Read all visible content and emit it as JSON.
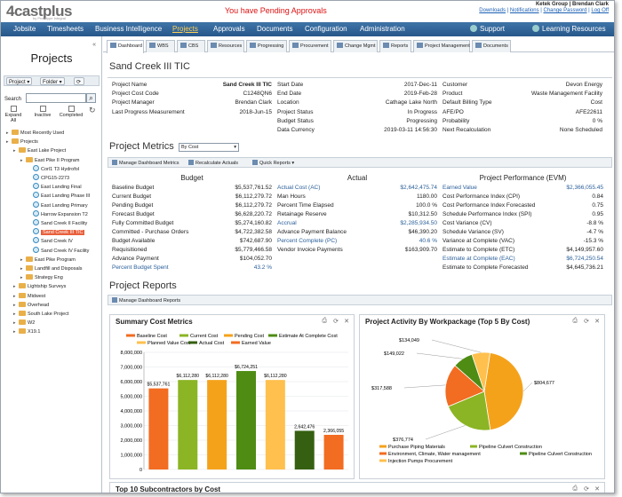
{
  "header": {
    "logo_text": "4castplus",
    "logo_sub": "by Prototype Integral",
    "pending": "You have Pending Approvals",
    "user": "Ketek Group | Brendan Clark",
    "links": [
      "Downloads",
      "Notifications",
      "Change Password",
      "Log Off"
    ]
  },
  "nav": {
    "items": [
      "Jobsite",
      "Timesheets",
      "Business Intelligence",
      "Projects",
      "Approvals",
      "Documents",
      "Configuration",
      "Administration"
    ],
    "support": "Support",
    "learning": "Learning Resources"
  },
  "sidebar": {
    "collapse": "«",
    "title": "Projects",
    "project_btn": "Project ▾",
    "folder_btn": "Folder ▾",
    "search_label": "Search",
    "filters": [
      "Expand All",
      "Inactive",
      "Completed"
    ],
    "tree": [
      {
        "label": "Most Recently Used",
        "level": 0,
        "type": "folder"
      },
      {
        "label": "Projects",
        "level": 0,
        "type": "folder"
      },
      {
        "label": "East Lake Project",
        "level": 1,
        "type": "folder"
      },
      {
        "label": "East Pike II Program",
        "level": 2,
        "type": "folder"
      },
      {
        "label": "Corl1 T3 Hydrofol",
        "level": 3,
        "type": "item"
      },
      {
        "label": "CPG15-2273",
        "level": 3,
        "type": "item"
      },
      {
        "label": "East Landing Final",
        "level": 3,
        "type": "item"
      },
      {
        "label": "East Landing Phase III",
        "level": 3,
        "type": "item"
      },
      {
        "label": "East Landing Primary",
        "level": 3,
        "type": "item"
      },
      {
        "label": "Harrow Expansion T2",
        "level": 3,
        "type": "item"
      },
      {
        "label": "Sand Creek II Facility",
        "level": 3,
        "type": "item"
      },
      {
        "label": "Sand Creek III TIC",
        "level": 3,
        "type": "item",
        "selected": true
      },
      {
        "label": "Sand Creek IV",
        "level": 3,
        "type": "item"
      },
      {
        "label": "Sand Creek IV Facility",
        "level": 3,
        "type": "item"
      },
      {
        "label": "East Pike Program",
        "level": 2,
        "type": "folder"
      },
      {
        "label": "Landfill and Disposals",
        "level": 2,
        "type": "folder"
      },
      {
        "label": "Strategy Eng",
        "level": 2,
        "type": "folder"
      },
      {
        "label": "Lightship Surveys",
        "level": 1,
        "type": "folder"
      },
      {
        "label": "Midwest",
        "level": 1,
        "type": "folder"
      },
      {
        "label": "Overhead",
        "level": 1,
        "type": "folder"
      },
      {
        "label": "South Lake Project",
        "level": 1,
        "type": "folder"
      },
      {
        "label": "W2",
        "level": 1,
        "type": "folder"
      },
      {
        "label": "X19.1",
        "level": 1,
        "type": "folder"
      }
    ]
  },
  "tabs": [
    "Dashboard",
    "WBS",
    "CBS",
    "Resources",
    "Progressing",
    "Procurement",
    "Change Mgmt",
    "Reports",
    "Project Management",
    "Documents"
  ],
  "project": {
    "title": "Sand Creek III TIC",
    "col1": [
      {
        "k": "Project Name",
        "v": "Sand Creek III TIC",
        "bold": true
      },
      {
        "k": "Project Cost Code",
        "v": "C1248QN6"
      },
      {
        "k": "Project Manager",
        "v": "Brendan Clark"
      },
      {
        "k": "Last Progress Measurement",
        "v": "2018-Jun-15"
      }
    ],
    "col2": [
      {
        "k": "Start Date",
        "v": "2017-Dec-11"
      },
      {
        "k": "End Date",
        "v": "2019-Feb-28"
      },
      {
        "k": "Location",
        "v": "Cathage Lake North"
      },
      {
        "k": "Project Status",
        "v": "In Progress"
      },
      {
        "k": "Budget Status",
        "v": "Progressing"
      },
      {
        "k": "Data Currency",
        "v": "2019-03-11 14:56:30"
      }
    ],
    "col3": [
      {
        "k": "Customer",
        "v": "Devon Energy"
      },
      {
        "k": "Product",
        "v": "Waste Management Facility"
      },
      {
        "k": "Default Billing Type",
        "v": "Cost"
      },
      {
        "k": "AFE/PO",
        "v": "AFE22611"
      },
      {
        "k": "Probability",
        "v": "0 %"
      },
      {
        "k": "Next Recalculation",
        "v": "None Scheduled"
      }
    ]
  },
  "metrics": {
    "title": "Project Metrics",
    "select": "By Cost",
    "toolbar": [
      "Manage Dashboard Metrics",
      "Recalculate Actuals",
      "Quick Reports ▾"
    ],
    "budget_header": "Budget",
    "actual_header": "Actual",
    "evm_header": "Project Performance (EVM)",
    "budget": [
      {
        "k": "Baseline Budget",
        "v": "$5,537,761.52"
      },
      {
        "k": "Current Budget",
        "v": "$6,112,279.72"
      },
      {
        "k": "Pending Budget",
        "v": "$6,112,279.72"
      },
      {
        "k": "Forecast Budget",
        "v": "$6,628,220.72"
      },
      {
        "k": "Fully Committed Budget",
        "v": "$5,274,160.82"
      },
      {
        "k": "Committed - Purchase Orders",
        "v": "$4,722,382.58"
      },
      {
        "k": "Budget Available",
        "v": "$742,687.90"
      },
      {
        "k": "Requisitioned",
        "v": "$5,779,466.58"
      },
      {
        "k": "Advance Payment",
        "v": "$104,052.70"
      },
      {
        "k": "Percent Budget Spent",
        "v": "43.2 %",
        "blue": true
      }
    ],
    "actual": [
      {
        "k": "Actual Cost (AC)",
        "v": "$2,642,475.74",
        "blue": true
      },
      {
        "k": "Man Hours",
        "v": "1180.00"
      },
      {
        "k": "Percent Time Elapsed",
        "v": "100.0 %"
      },
      {
        "k": "Retainage Reserve",
        "v": "$10,312.50"
      },
      {
        "k": "Accrual",
        "v": "$2,285,934.50",
        "blue": true
      },
      {
        "k": "Advance Payment Balance",
        "v": "$46,390.20"
      },
      {
        "k": "Percent Complete (PC)",
        "v": "40.6 %",
        "blue": true
      },
      {
        "k": "Vendor Invoice Payments",
        "v": "$163,909.70"
      }
    ],
    "evm": [
      {
        "k": "Earned Value",
        "v": "$2,366,055.45",
        "blue": true
      },
      {
        "k": "Cost Performance Index (CPI)",
        "v": "0.84"
      },
      {
        "k": "Cost Performance Index Forecasted",
        "v": "0.75"
      },
      {
        "k": "Schedule Performance Index (SPI)",
        "v": "0.95"
      },
      {
        "k": "Cost Variance (CV)",
        "v": "-8.8 %"
      },
      {
        "k": "Schedule Variance (SV)",
        "v": "-4.7 %"
      },
      {
        "k": "Variance at Complete (VAC)",
        "v": "-15.3 %"
      },
      {
        "k": "Estimate to Complete (ETC)",
        "v": "$4,149,957.60"
      },
      {
        "k": "Estimate at Complete (EAC)",
        "v": "$6,724,250.54",
        "blue": true
      },
      {
        "k": "Estimate to Complete Forecasted",
        "v": "$4,645,736.21"
      }
    ]
  },
  "reports": {
    "title": "Project Reports",
    "toolbar": [
      "Manage Dashboard Reports"
    ],
    "bottom_panel_title": "Top 10 Subcontractors by Cost"
  },
  "chart_data": [
    {
      "type": "bar",
      "title": "Summary Cost Metrics",
      "categories": [
        "Baseline Cost",
        "Current Cost",
        "Pending Cost",
        "Estimate At Complete Cost",
        "Planned Value Cost",
        "Actual Cost",
        "Earned Value"
      ],
      "values": [
        5537761,
        6112280,
        6112280,
        6724251,
        6112280,
        2642476,
        2366055
      ],
      "value_labels": [
        "$5,537,761",
        "$6,112,280",
        "$6,112,280",
        "$6,724,251",
        "$6,112,280",
        "2,642,476",
        "2,366,055"
      ],
      "colors": [
        "#f26c21",
        "#8bb524",
        "#f5a21b",
        "#4e8c13",
        "#ffc04d",
        "#356011",
        "#f26c21"
      ],
      "ylim": [
        0,
        8000000
      ],
      "yticks": [
        "0",
        "1,000,000",
        "2,000,000",
        "3,000,000",
        "4,000,000",
        "5,000,000",
        "6,000,000",
        "7,000,000",
        "8,000,000"
      ],
      "grid": true,
      "legend": "top"
    },
    {
      "type": "pie",
      "title": "Project Activity By Workpackage (Top 5 By Cost)",
      "slices": [
        {
          "name": "Purchase Piping Materials",
          "value": 804677,
          "label": "$804,677",
          "color": "#f5a21b"
        },
        {
          "name": "Pipeline Culvert Construction",
          "value": 376774,
          "label": "$376,774",
          "color": "#8bb524"
        },
        {
          "name": "Environment, Climate, Water management",
          "value": 317588,
          "label": "$317,588",
          "color": "#f26c21"
        },
        {
          "name": "Pipeline Culvert Construction",
          "value": 149022,
          "label": "$149,022",
          "color": "#4e8c13"
        },
        {
          "name": "Injection Pumps Procurement",
          "value": 134049,
          "label": "$134,049",
          "color": "#ffc04d"
        }
      ],
      "legend": "bottom"
    }
  ]
}
